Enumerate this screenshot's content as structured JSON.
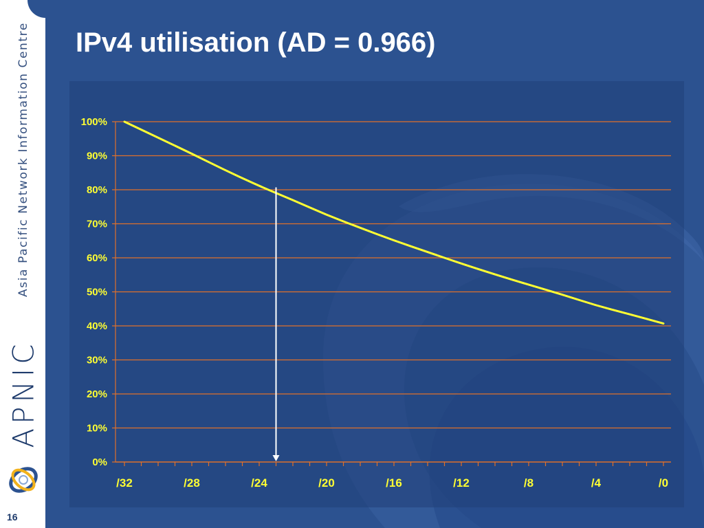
{
  "slide": {
    "title": "IPv4 utilisation (AD = 0.966)",
    "slide_number": "16",
    "org_name": "Asia Pacific Network Information Centre",
    "org_logo_text": "APNIC"
  },
  "colors": {
    "background": "#2c5290",
    "line": "#ffff33",
    "gridline": "#e0702a",
    "marker": "#ffffff",
    "tick_text": "#ffff33"
  },
  "icons": [
    "apnic-swirl-icon"
  ],
  "chart_data": {
    "type": "line",
    "title": "",
    "xlabel": "",
    "ylabel": "",
    "x_ticks": [
      "/32",
      "/28",
      "/24",
      "/20",
      "/16",
      "/12",
      "/8",
      "/4",
      "/0"
    ],
    "x_ticks_values": [
      32,
      28,
      24,
      20,
      16,
      12,
      8,
      4,
      0
    ],
    "y_ticks": [
      "0%",
      "10%",
      "20%",
      "30%",
      "40%",
      "50%",
      "60%",
      "70%",
      "80%",
      "90%",
      "100%"
    ],
    "ylim": [
      0,
      100
    ],
    "xlim": [
      32,
      0
    ],
    "grid": true,
    "series": [
      {
        "x": [
          32,
          30,
          28,
          26,
          24,
          22,
          20,
          18,
          16,
          14,
          12,
          10,
          8,
          6,
          4,
          2,
          0
        ],
        "y": [
          100,
          95.3,
          90.6,
          85.7,
          81.1,
          77.0,
          72.6,
          68.8,
          65.1,
          61.7,
          58.3,
          55.1,
          52.1,
          49.2,
          46.0,
          43.4,
          40.7
        ]
      }
    ],
    "marker": {
      "x": 23,
      "y": 80.7
    }
  }
}
